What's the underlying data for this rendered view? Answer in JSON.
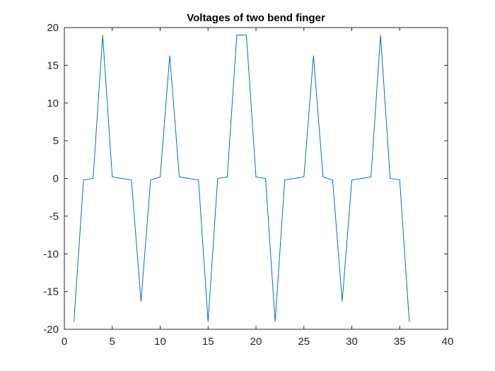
{
  "chart_data": {
    "type": "line",
    "title": "Voltages of two bend finger",
    "xlabel": "",
    "ylabel": "",
    "xlim": [
      0,
      40
    ],
    "ylim": [
      -20,
      20
    ],
    "xticks": [
      0,
      5,
      10,
      15,
      20,
      25,
      30,
      35,
      40
    ],
    "yticks": [
      -20,
      -15,
      -10,
      -5,
      0,
      5,
      10,
      15,
      20
    ],
    "grid": false,
    "box": true,
    "line_color": "#0072BD",
    "series": [
      {
        "x": [
          1,
          2,
          3,
          4,
          5,
          6,
          7,
          8,
          9,
          10,
          11,
          12,
          13,
          14,
          15,
          16,
          17,
          18,
          19,
          20,
          21,
          22,
          23,
          24,
          25,
          26,
          27,
          28,
          29,
          30,
          31,
          32,
          33,
          34,
          35,
          36
        ],
        "values": [
          -19,
          -0.2,
          0,
          19,
          0.2,
          0,
          -0.2,
          -16.3,
          -0.2,
          0.2,
          16.3,
          0.2,
          0,
          -0.2,
          -19,
          0,
          0.2,
          19,
          19,
          0.2,
          0,
          -19,
          -0.2,
          0,
          0.2,
          16.3,
          0.2,
          -0.2,
          -16.3,
          -0.2,
          0,
          0.2,
          19,
          0,
          -0.2,
          -19
        ]
      }
    ]
  }
}
